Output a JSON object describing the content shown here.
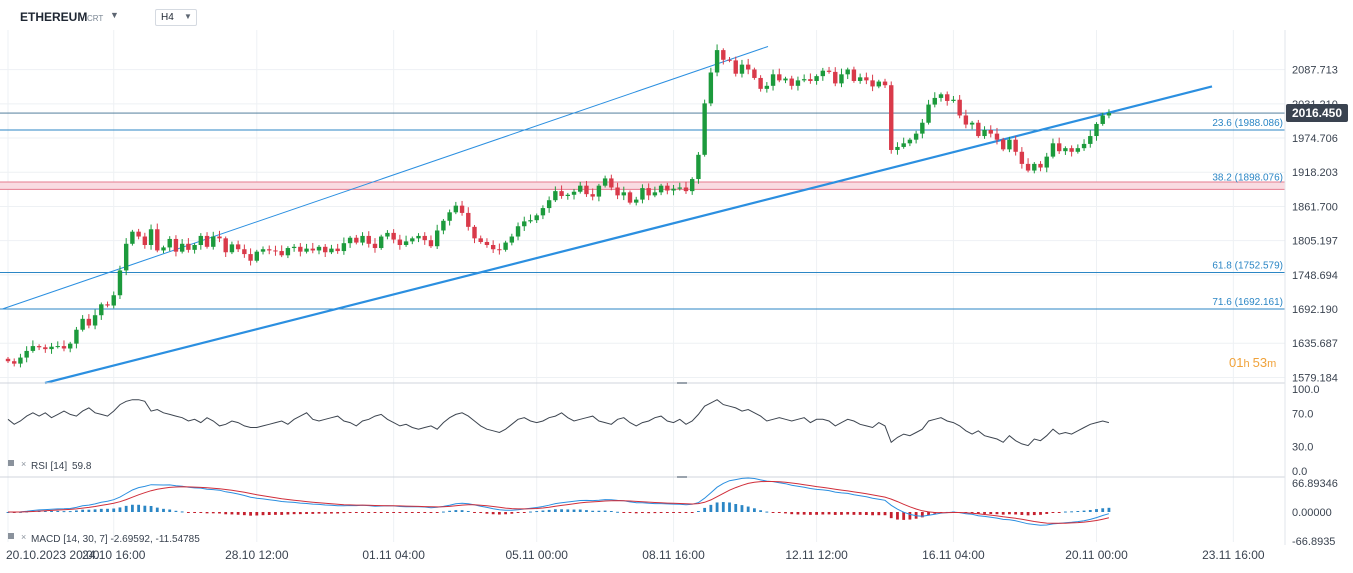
{
  "toolbar": {
    "symbol": "ETHEREUM",
    "symbol_suffix": "CRT",
    "timeframe": "H4"
  },
  "chart_data": {
    "type": "candlestick",
    "price_axis": {
      "ticks": [
        "2087.713",
        "2031.210",
        "1974.706",
        "1918.203",
        "1861.700",
        "1805.197",
        "1748.694",
        "1692.190",
        "1635.687",
        "1579.184"
      ],
      "range": [
        1570,
        2140
      ]
    },
    "time_axis": [
      "20.10.2023  20:00",
      "24.10  16:00",
      "28.10  12:00",
      "01.11  04:00",
      "05.11  00:00",
      "08.11  16:00",
      "12.11  12:00",
      "16.11  04:00",
      "20.11  00:00",
      "23.11  16:00"
    ],
    "last_price": "2016.450",
    "countdown": {
      "hours": "01",
      "h_unit": "h",
      "minutes": "53",
      "m_unit": "m"
    },
    "fib_levels": [
      {
        "label": "23.6 (1988.086)",
        "value": 1988.086
      },
      {
        "label": "38.2 (1898.076)",
        "value": 1898.076
      },
      {
        "label": "61.8 (1752.579)",
        "value": 1752.579
      },
      {
        "label": "71.6 (1692.161)",
        "value": 1692.161
      }
    ],
    "candles_close": [
      1606,
      1602,
      1612,
      1623,
      1631,
      1629,
      1626,
      1630,
      1631,
      1627,
      1635,
      1658,
      1676,
      1665,
      1682,
      1700,
      1698,
      1715,
      1756,
      1800,
      1820,
      1812,
      1798,
      1824,
      1789,
      1794,
      1808,
      1787,
      1800,
      1790,
      1798,
      1813,
      1795,
      1812,
      1809,
      1786,
      1799,
      1791,
      1783,
      1772,
      1787,
      1791,
      1789,
      1788,
      1781,
      1793,
      1795,
      1787,
      1792,
      1789,
      1795,
      1786,
      1792,
      1788,
      1801,
      1810,
      1802,
      1813,
      1800,
      1793,
      1812,
      1818,
      1807,
      1798,
      1804,
      1809,
      1813,
      1806,
      1796,
      1822,
      1838,
      1852,
      1863,
      1851,
      1828,
      1809,
      1803,
      1798,
      1791,
      1790,
      1802,
      1812,
      1829,
      1837,
      1839,
      1847,
      1859,
      1872,
      1887,
      1879,
      1881,
      1886,
      1896,
      1882,
      1878,
      1896,
      1908,
      1893,
      1880,
      1885,
      1868,
      1873,
      1892,
      1880,
      1885,
      1896,
      1888,
      1891,
      1893,
      1887,
      1907,
      1947,
      2032,
      2083,
      2120,
      2104,
      2103,
      2081,
      2096,
      2088,
      2074,
      2056,
      2061,
      2080,
      2070,
      2073,
      2061,
      2070,
      2072,
      2069,
      2077,
      2086,
      2084,
      2065,
      2080,
      2088,
      2069,
      2075,
      2070,
      2060,
      2068,
      2062,
      1955,
      1960,
      1966,
      1972,
      1982,
      2000,
      2030,
      2041,
      2047,
      2036,
      2038,
      2012,
      1997,
      2000,
      1978,
      1988,
      1982,
      1972,
      1956,
      1972,
      1952,
      1932,
      1921,
      1932,
      1926,
      1944,
      1966,
      1953,
      1958,
      1952,
      1958,
      1965,
      1978,
      1998,
      2012,
      2016
    ]
  },
  "rsi": {
    "label": "RSI [14]",
    "value": "59.8",
    "ticks": [
      "100.0",
      "70.0",
      "30.0",
      "0.0"
    ],
    "values": [
      63,
      57,
      61,
      67,
      71,
      67,
      71,
      65,
      69,
      73,
      69,
      67,
      73,
      77,
      71,
      69,
      67,
      73,
      81,
      85,
      87,
      87,
      85,
      73,
      75,
      71,
      69,
      67,
      65,
      61,
      63,
      59,
      65,
      61,
      55,
      57,
      61,
      59,
      55,
      53,
      53,
      55,
      57,
      59,
      61,
      57,
      63,
      67,
      71,
      63,
      61,
      63,
      65,
      67,
      61,
      59,
      55,
      61,
      63,
      67,
      69,
      63,
      59,
      55,
      57,
      53,
      51,
      53,
      55,
      51,
      59,
      65,
      69,
      71,
      67,
      61,
      55,
      51,
      49,
      47,
      51,
      57,
      63,
      65,
      61,
      59,
      61,
      65,
      67,
      71,
      65,
      61,
      63,
      65,
      67,
      61,
      59,
      57,
      63,
      65,
      59,
      55,
      59,
      61,
      65,
      67,
      61,
      59,
      63,
      57,
      61,
      69,
      79,
      83,
      87,
      81,
      79,
      77,
      73,
      75,
      71,
      67,
      61,
      63,
      65,
      63,
      61,
      63,
      65,
      59,
      63,
      63,
      61,
      55,
      59,
      63,
      61,
      57,
      55,
      53,
      59,
      55,
      35,
      41,
      45,
      43,
      47,
      51,
      61,
      63,
      65,
      61,
      59,
      55,
      49,
      45,
      49,
      43,
      41,
      39,
      35,
      43,
      37,
      33,
      31,
      39,
      37,
      43,
      51,
      45,
      47,
      45,
      49,
      53,
      57,
      59,
      61,
      59
    ]
  },
  "macd": {
    "label": "MACD [14, 30, 7]",
    "macd_value": "-2.69592",
    "signal_value": "-11.54785",
    "ticks": [
      "66.89346",
      "0.00000",
      "-66.8935"
    ],
    "range": [
      -66.8935,
      66.89346
    ]
  }
}
